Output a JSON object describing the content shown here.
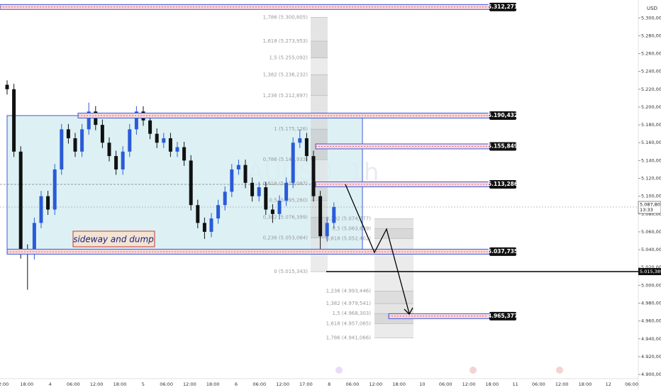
{
  "chart_data": {
    "type": "candlestick",
    "currency": "USD",
    "watermark": "XAUUSD, 1h",
    "up_color": "#2a5bd7",
    "down_color": "#111111",
    "ylim": [
      4890.5,
      5320.1
    ],
    "yticks": [
      {
        "value": 5300,
        "label": "5.300,000"
      },
      {
        "value": 5280,
        "label": "5.280,000"
      },
      {
        "value": 5260,
        "label": "5.260,000"
      },
      {
        "value": 5240,
        "label": "5.240,000"
      },
      {
        "value": 5220,
        "label": "5.220,000"
      },
      {
        "value": 5200,
        "label": "5.200,000"
      },
      {
        "value": 5180,
        "label": "5.180,000"
      },
      {
        "value": 5160,
        "label": "5.160,000"
      },
      {
        "value": 5140,
        "label": "5.140,000"
      },
      {
        "value": 5120,
        "label": "5.120,000"
      },
      {
        "value": 5100,
        "label": "5.100,000"
      },
      {
        "value": 5080,
        "label": "5.080,000"
      },
      {
        "value": 5060,
        "label": "5.060,000"
      },
      {
        "value": 5040,
        "label": "5.040,000"
      },
      {
        "value": 5020,
        "label": "5.020,000"
      },
      {
        "value": 5000,
        "label": "5.000,000"
      },
      {
        "value": 4980,
        "label": "4.980,000"
      },
      {
        "value": 4960,
        "label": "4.960,000"
      },
      {
        "value": 4940,
        "label": "4.940,000"
      },
      {
        "value": 4920,
        "label": "4.920,000"
      },
      {
        "value": 4900,
        "label": "4.900,000"
      }
    ],
    "x_labels": [
      "2:00",
      "18:00",
      "4",
      "06:00",
      "12:00",
      "18:00",
      "5",
      "06:00",
      "12:00",
      "18:00",
      "6",
      "06:00",
      "12:00",
      "17:00",
      "8",
      "06:00",
      "12:00",
      "18:00",
      "10",
      "06:00",
      "12:00",
      "18:00",
      "11",
      "06:00",
      "12:00",
      "18:00",
      "12",
      "06:00"
    ],
    "open": [
      5225,
      5220,
      5150,
      5040,
      5035,
      5070,
      5100,
      5085,
      5130,
      5175,
      5165,
      5150,
      5175,
      5195,
      5180,
      5160,
      5145,
      5130,
      5150,
      5175,
      5195,
      5185,
      5170,
      5160,
      5165,
      5150,
      5155,
      5140,
      5090,
      5070,
      5060,
      5075,
      5090,
      5105,
      5130,
      5135,
      5115,
      5100,
      5110,
      5085,
      5080,
      5095,
      5115,
      5160,
      5165,
      5145,
      5100,
      5055,
      5070
    ],
    "high": [
      5230,
      5226,
      5156,
      5046,
      5076,
      5106,
      5106,
      5136,
      5181,
      5181,
      5171,
      5181,
      5205,
      5201,
      5186,
      5166,
      5151,
      5156,
      5181,
      5201,
      5201,
      5191,
      5176,
      5171,
      5171,
      5161,
      5161,
      5146,
      5096,
      5076,
      5081,
      5096,
      5111,
      5136,
      5141,
      5141,
      5121,
      5116,
      5116,
      5091,
      5101,
      5121,
      5166,
      5175,
      5171,
      5151,
      5106,
      5076,
      5093
    ],
    "low": [
      5214,
      5144,
      5030,
      4995,
      5029,
      5064,
      5079,
      5079,
      5124,
      5159,
      5144,
      5144,
      5169,
      5174,
      5154,
      5139,
      5124,
      5124,
      5144,
      5169,
      5179,
      5164,
      5154,
      5154,
      5144,
      5144,
      5134,
      5084,
      5064,
      5052,
      5054,
      5069,
      5084,
      5099,
      5124,
      5109,
      5094,
      5094,
      5079,
      5070,
      5074,
      5089,
      5109,
      5154,
      5139,
      5094,
      5035,
      5049,
      5064
    ],
    "close": [
      5220,
      5150,
      5040,
      5035,
      5070,
      5100,
      5085,
      5130,
      5175,
      5165,
      5150,
      5175,
      5195,
      5180,
      5160,
      5145,
      5130,
      5150,
      5175,
      5195,
      5185,
      5170,
      5160,
      5165,
      5150,
      5155,
      5140,
      5090,
      5070,
      5060,
      5075,
      5090,
      5105,
      5130,
      5135,
      5115,
      5100,
      5110,
      5085,
      5080,
      5095,
      5115,
      5160,
      5165,
      5145,
      5100,
      5055,
      5070,
      5087.805
    ],
    "levels": [
      {
        "value": 5312.271,
        "label": "5.312,271"
      },
      {
        "value": 5190.432,
        "label": "5.190,432"
      },
      {
        "value": 5155.849,
        "label": "5.155,849"
      },
      {
        "value": 5113.286,
        "label": "5.113,286"
      },
      {
        "value": 5037.735,
        "label": "5.037,735"
      },
      {
        "value": 4965.377,
        "label": "4.965,377"
      }
    ],
    "line_level": {
      "value": 5015.389,
      "label": "5.015,389"
    },
    "last_price": {
      "value": 5087.805,
      "label": "5.087,805",
      "countdown": "13:33"
    },
    "range_box": {
      "top": 5190.432,
      "bottom": 5037.735,
      "label": "sideway and dump"
    },
    "fib_a": [
      {
        "price": 5300.805,
        "label": "1,786 (5.300,805)"
      },
      {
        "price": 5273.953,
        "label": "1,618 (5.273,953)"
      },
      {
        "price": 5255.092,
        "label": "1,5 (5.255,092)"
      },
      {
        "price": 5236.232,
        "label": "1,382 (5.236,232)"
      },
      {
        "price": 5212.897,
        "label": "1,236 (5.212,897)"
      },
      {
        "price": 5175.126,
        "label": "1 (5.175,126)"
      },
      {
        "price": 5140.933,
        "label": "0,786 (5.140,933)"
      },
      {
        "price": 5114.087,
        "label": "0,618 (5.114,087)"
      },
      {
        "price": 5095.26,
        "label": "0,5 (5.095,260)"
      },
      {
        "price": 5076.399,
        "label": "0,382 (5.076,399)"
      },
      {
        "price": 5053.064,
        "label": "0,236 (5.053,064)"
      },
      {
        "price": 5015.343,
        "label": "0 (5.015,343)"
      }
    ],
    "fib_b": [
      {
        "price": 5074.777,
        "label": "0,382 (5.074,777)"
      },
      {
        "price": 5063.639,
        "label": "0,5 (5.063,639)"
      },
      {
        "price": 5052.402,
        "label": "0,618 (5.052,402)"
      },
      {
        "price": 4993.446,
        "label": "1,236 (4.993,446)"
      },
      {
        "price": 4979.541,
        "label": "1,382 (4.979,541)"
      },
      {
        "price": 4968.303,
        "label": "1,5 (4.968,303)"
      },
      {
        "price": 4957.065,
        "label": "1,618 (4.957,065)"
      },
      {
        "price": 4941.066,
        "label": "1,786 (4.941,066)"
      }
    ]
  }
}
